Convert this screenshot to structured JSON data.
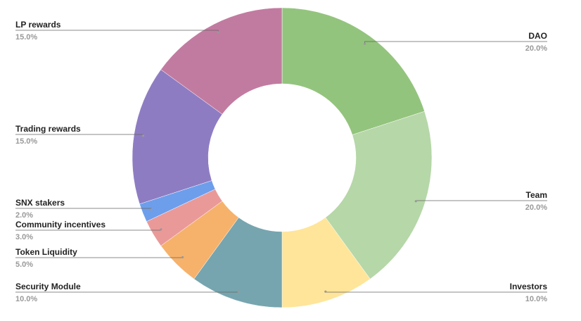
{
  "chart_data": {
    "type": "donut",
    "categories": [
      "DAO",
      "Team",
      "Investors",
      "Security Module",
      "Token Liquidity",
      "Community incentives",
      "SNX stakers",
      "Trading rewards",
      "LP rewards"
    ],
    "values": [
      20,
      20,
      10,
      10,
      5,
      3,
      2,
      15,
      15
    ],
    "value_labels": [
      "20.0%",
      "20.0%",
      "10.0%",
      "10.0%",
      "5.0%",
      "3.0%",
      "2.0%",
      "15.0%",
      "15.0%"
    ],
    "colors": [
      "#93c47d",
      "#b6d7a8",
      "#ffe599",
      "#76a5af",
      "#f6b26b",
      "#ea9999",
      "#6d9eeb",
      "#8e7cc3",
      "#c27ba0"
    ]
  }
}
